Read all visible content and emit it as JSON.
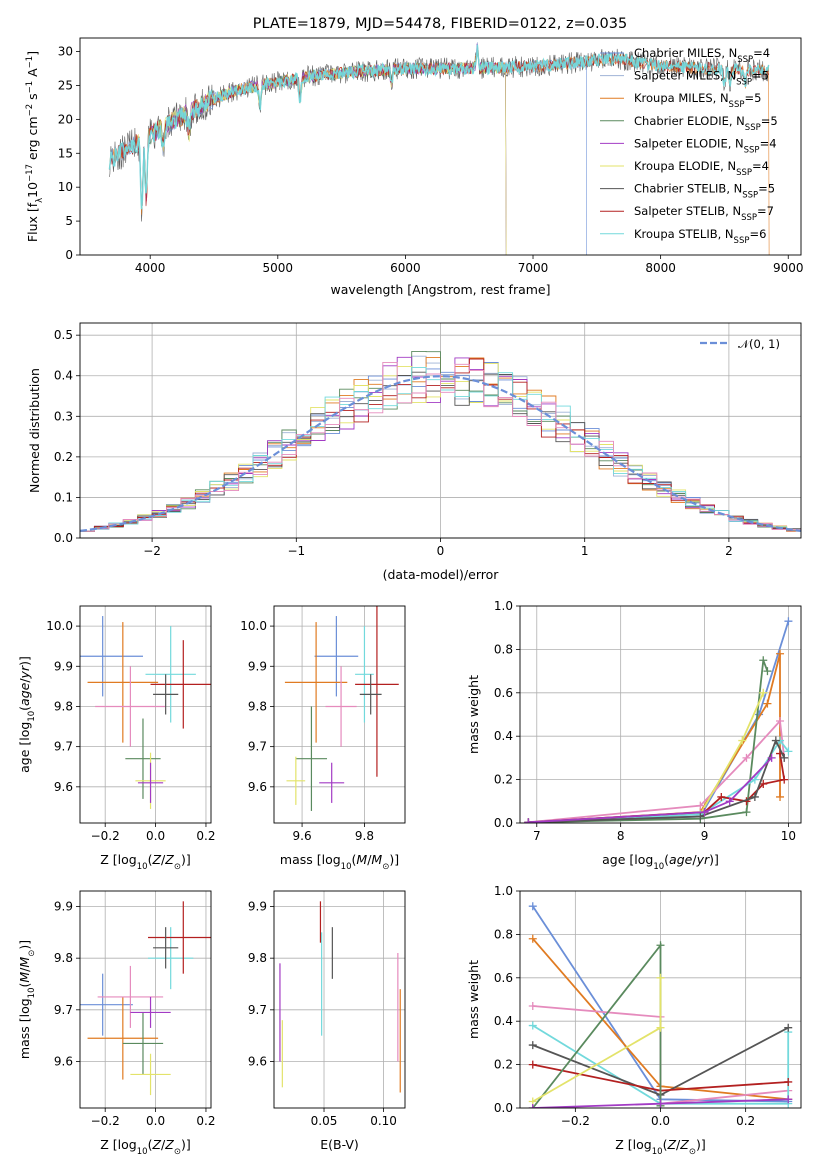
{
  "title": "PLATE=1879, MJD=54478, FIBERID=0122, z=0.035",
  "colors": {
    "Chabrier MILES": "#6b8fd8",
    "Salpeter MILES": "#9fb3d6",
    "Kroupa MILES": "#e07b22",
    "Chabrier ELODIE": "#5a8a5e",
    "Salpeter ELODIE": "#a23bc4",
    "Kroupa ELODIE": "#e3e36a",
    "Chabrier STELIB": "#555555",
    "Salpeter STELIB": "#b32020",
    "Kroupa STELIB": "#72d9dc",
    "pink": "#e58bbd",
    "lime": "#c9e85b",
    "normal": "#6b8fd8"
  },
  "chart_data": [
    {
      "id": "spectrum",
      "type": "line",
      "xlabel": "wavelength [Angstrom, rest frame]",
      "ylabel": "Flux [f",
      "ylabel_parts": [
        "Flux [f",
        "λ",
        "10",
        "−17",
        " erg cm",
        "−2",
        " s",
        "−1",
        " A",
        "−1",
        "]"
      ],
      "xlim": [
        3450,
        9100
      ],
      "ylim": [
        0,
        32
      ],
      "xticks": [
        4000,
        5000,
        6000,
        7000,
        8000,
        9000
      ],
      "yticks": [
        0,
        5,
        10,
        15,
        20,
        25,
        30
      ],
      "legend_position": "right",
      "legend": [
        {
          "name": "Chabrier MILES",
          "n": "4"
        },
        {
          "name": "Salpeter MILES",
          "n": "5"
        },
        {
          "name": "Kroupa MILES",
          "n": "5"
        },
        {
          "name": "Chabrier ELODIE",
          "n": "5"
        },
        {
          "name": "Salpeter ELODIE",
          "n": "4"
        },
        {
          "name": "Kroupa ELODIE",
          "n": "4"
        },
        {
          "name": "Chabrier STELIB",
          "n": "5"
        },
        {
          "name": "Salpeter STELIB",
          "n": "7"
        },
        {
          "name": "Kroupa STELIB",
          "n": "6"
        }
      ],
      "nssp_label": "N",
      "nssp_sub": "SSP",
      "continuum": [
        [
          3680,
          14
        ],
        [
          3850,
          16
        ],
        [
          3950,
          17
        ],
        [
          4100,
          19
        ],
        [
          4300,
          21
        ],
        [
          4500,
          23
        ],
        [
          4700,
          24.5
        ],
        [
          5000,
          25.5
        ],
        [
          5300,
          26.5
        ],
        [
          5600,
          27
        ],
        [
          6000,
          27.5
        ],
        [
          6500,
          27.5
        ],
        [
          7000,
          27.8
        ],
        [
          7400,
          28.5
        ],
        [
          7600,
          29
        ],
        [
          7800,
          28.5
        ],
        [
          8000,
          27.8
        ],
        [
          8400,
          27.5
        ],
        [
          8800,
          27.2
        ]
      ],
      "dips": [
        [
          3934,
          10
        ],
        [
          3969,
          9
        ],
        [
          4102,
          3
        ],
        [
          4304,
          3
        ],
        [
          4861,
          3
        ],
        [
          5175,
          3
        ],
        [
          5890,
          2
        ],
        [
          6563,
          -3
        ],
        [
          8500,
          2
        ],
        [
          8542,
          2
        ],
        [
          8662,
          2
        ]
      ]
    },
    {
      "id": "residuals",
      "type": "histogram",
      "xlabel": "(data-model)/error",
      "ylabel": "Normed distribution",
      "xlim": [
        -2.5,
        2.5
      ],
      "ylim": [
        0,
        0.53
      ],
      "xticks": [
        -2,
        -1,
        0,
        1,
        2
      ],
      "yticks": [
        0.0,
        0.1,
        0.2,
        0.3,
        0.4,
        0.5
      ],
      "grid": true,
      "legend_position": "top-right",
      "legend_label": "𝒩(0, 1)",
      "bin_width": 0.1
    },
    {
      "id": "age-vs-Z",
      "type": "scatter",
      "xlabel": "Z [log",
      "ylabel": "age  [log",
      "xlim": [
        -0.3,
        0.22
      ],
      "ylim": [
        9.51,
        10.05
      ],
      "xticks": [
        -0.2,
        0.0,
        0.2
      ],
      "yticks": [
        9.6,
        9.7,
        9.8,
        9.9,
        10.0
      ],
      "grid": true,
      "points": [
        {
          "c": "Chabrier MILES",
          "x": -0.21,
          "y": 9.925,
          "xerr": 0.16,
          "yerr": 0.1
        },
        {
          "c": "Kroupa MILES",
          "x": -0.13,
          "y": 9.86,
          "xerr": 0.14,
          "yerr": 0.15
        },
        {
          "c": "pink",
          "x": -0.1,
          "y": 9.8,
          "xerr": 0.14,
          "yerr": 0.1
        },
        {
          "c": "Kroupa STELIB",
          "x": 0.06,
          "y": 9.88,
          "xerr": 0.1,
          "yerr": 0.12
        },
        {
          "c": "Salpeter STELIB",
          "x": 0.11,
          "y": 9.855,
          "xerr": 0.13,
          "yerr": 0.11
        },
        {
          "c": "Chabrier STELIB",
          "x": 0.04,
          "y": 9.83,
          "xerr": 0.05,
          "yerr": 0.05
        },
        {
          "c": "Chabrier ELODIE",
          "x": -0.05,
          "y": 9.67,
          "xerr": 0.07,
          "yerr": 0.1
        },
        {
          "c": "Kroupa ELODIE",
          "x": -0.02,
          "y": 9.615,
          "xerr": 0.06,
          "yerr": 0.07
        },
        {
          "c": "Salpeter ELODIE",
          "x": -0.02,
          "y": 9.61,
          "xerr": 0.05,
          "yerr": 0.05
        }
      ]
    },
    {
      "id": "age-vs-mass",
      "type": "scatter",
      "xlabel": "mass [log",
      "xlim": [
        9.51,
        9.93
      ],
      "ylim": [
        9.51,
        10.05
      ],
      "xticks": [
        9.6,
        9.8
      ],
      "yticks": [
        9.6,
        9.7,
        9.8,
        9.9,
        10.0
      ],
      "grid": true,
      "points": [
        {
          "c": "Chabrier MILES",
          "x": 9.71,
          "y": 9.925,
          "xerr": 0.07,
          "yerr": 0.1
        },
        {
          "c": "Kroupa MILES",
          "x": 9.645,
          "y": 9.86,
          "xerr": 0.1,
          "yerr": 0.15
        },
        {
          "c": "pink",
          "x": 9.725,
          "y": 9.8,
          "xerr": 0.05,
          "yerr": 0.1
        },
        {
          "c": "Kroupa STELIB",
          "x": 9.8,
          "y": 9.88,
          "xerr": 0.03,
          "yerr": 0.12
        },
        {
          "c": "Salpeter STELIB",
          "x": 9.84,
          "y": 9.855,
          "xerr": 0.07,
          "yerr": 0.23
        },
        {
          "c": "Chabrier STELIB",
          "x": 9.82,
          "y": 9.83,
          "xerr": 0.035,
          "yerr": 0.05
        },
        {
          "c": "Chabrier ELODIE",
          "x": 9.63,
          "y": 9.67,
          "xerr": 0.05,
          "yerr": 0.13
        },
        {
          "c": "Kroupa ELODIE",
          "x": 9.58,
          "y": 9.615,
          "xerr": 0.03,
          "yerr": 0.06
        },
        {
          "c": "Salpeter ELODIE",
          "x": 9.695,
          "y": 9.61,
          "xerr": 0.04,
          "yerr": 0.05
        }
      ]
    },
    {
      "id": "weight-vs-age",
      "type": "line",
      "xlabel": "age  [log",
      "ylabel": "mass weight",
      "xlim": [
        6.8,
        10.15
      ],
      "ylim": [
        0,
        1.0
      ],
      "xticks": [
        7,
        8,
        9,
        10
      ],
      "yticks": [
        0.0,
        0.2,
        0.4,
        0.6,
        0.8,
        1.0
      ],
      "grid": true,
      "series": [
        {
          "c": "Chabrier MILES",
          "pts": [
            [
              6.9,
              0.003
            ],
            [
              8.95,
              0.03
            ],
            [
              9.65,
              0.5
            ],
            [
              10.0,
              0.93
            ]
          ]
        },
        {
          "c": "Kroupa MILES",
          "pts": [
            [
              6.9,
              0.003
            ],
            [
              8.95,
              0.05
            ],
            [
              9.75,
              0.55
            ],
            [
              9.9,
              0.78
            ],
            [
              9.9,
              0.12
            ]
          ]
        },
        {
          "c": "pink",
          "pts": [
            [
              6.9,
              0.003
            ],
            [
              8.95,
              0.08
            ],
            [
              9.5,
              0.3
            ],
            [
              9.9,
              0.47
            ],
            [
              9.95,
              0.3
            ]
          ]
        },
        {
          "c": "Chabrier ELODIE",
          "pts": [
            [
              6.9,
              0.003
            ],
            [
              8.95,
              0.02
            ],
            [
              9.5,
              0.05
            ],
            [
              9.7,
              0.75
            ],
            [
              9.75,
              0.7
            ]
          ]
        },
        {
          "c": "Kroupa ELODIE",
          "pts": [
            [
              6.9,
              0.003
            ],
            [
              8.95,
              0.04
            ],
            [
              9.45,
              0.38
            ],
            [
              9.7,
              0.6
            ]
          ]
        },
        {
          "c": "Kroupa STELIB",
          "pts": [
            [
              6.9,
              0.003
            ],
            [
              8.95,
              0.04
            ],
            [
              9.6,
              0.2
            ],
            [
              9.9,
              0.38
            ],
            [
              10.0,
              0.33
            ]
          ]
        },
        {
          "c": "Salpeter STELIB",
          "pts": [
            [
              6.9,
              0.003
            ],
            [
              9.0,
              0.05
            ],
            [
              9.2,
              0.12
            ],
            [
              9.5,
              0.1
            ],
            [
              9.7,
              0.18
            ],
            [
              9.95,
              0.2
            ],
            [
              9.9,
              0.32
            ]
          ]
        },
        {
          "c": "Chabrier STELIB",
          "pts": [
            [
              6.9,
              0.003
            ],
            [
              8.95,
              0.03
            ],
            [
              9.6,
              0.12
            ],
            [
              9.85,
              0.38
            ],
            [
              9.95,
              0.3
            ]
          ]
        },
        {
          "c": "Salpeter ELODIE",
          "pts": [
            [
              6.9,
              0.003
            ],
            [
              9.0,
              0.05
            ],
            [
              9.3,
              0.1
            ],
            [
              9.8,
              0.3
            ]
          ]
        }
      ]
    },
    {
      "id": "mass-vs-Z",
      "type": "scatter",
      "xlabel": "Z [log",
      "ylabel": "mass [log",
      "xlim": [
        -0.3,
        0.22
      ],
      "ylim": [
        9.51,
        9.93
      ],
      "xticks": [
        -0.2,
        0.0,
        0.2
      ],
      "yticks": [
        9.6,
        9.7,
        9.8,
        9.9
      ],
      "grid": true,
      "points": [
        {
          "c": "Chabrier MILES",
          "x": -0.21,
          "y": 9.71,
          "xerr": 0.12,
          "yerr": 0.06
        },
        {
          "c": "Kroupa MILES",
          "x": -0.13,
          "y": 9.645,
          "xerr": 0.14,
          "yerr": 0.08
        },
        {
          "c": "pink",
          "x": -0.1,
          "y": 9.725,
          "xerr": 0.13,
          "yerr": 0.06
        },
        {
          "c": "Kroupa STELIB",
          "x": 0.06,
          "y": 9.8,
          "xerr": 0.09,
          "yerr": 0.06
        },
        {
          "c": "Salpeter STELIB",
          "x": 0.11,
          "y": 9.84,
          "xerr": 0.14,
          "yerr": 0.07
        },
        {
          "c": "Chabrier STELIB",
          "x": 0.04,
          "y": 9.82,
          "xerr": 0.05,
          "yerr": 0.04
        },
        {
          "c": "Chabrier ELODIE",
          "x": -0.05,
          "y": 9.635,
          "xerr": 0.08,
          "yerr": 0.06
        },
        {
          "c": "Kroupa ELODIE",
          "x": -0.02,
          "y": 9.575,
          "xerr": 0.08,
          "yerr": 0.04
        },
        {
          "c": "Salpeter ELODIE",
          "x": -0.02,
          "y": 9.695,
          "xerr": 0.08,
          "yerr": 0.03
        }
      ]
    },
    {
      "id": "mass-vs-EBV",
      "type": "scatter",
      "xlabel": "E(B-V)",
      "xlim": [
        0.008,
        0.118
      ],
      "ylim": [
        9.51,
        9.93
      ],
      "xticks": [
        0.05,
        0.1
      ],
      "yticks": [
        9.6,
        9.7,
        9.8,
        9.9
      ],
      "grid": true,
      "segments": [
        {
          "c": "Salpeter ELODIE",
          "x": 0.013,
          "y0": 9.6,
          "y1": 9.79
        },
        {
          "c": "Kroupa ELODIE",
          "x": 0.015,
          "y0": 9.55,
          "y1": 9.68
        },
        {
          "c": "Salpeter STELIB",
          "x": 0.047,
          "y0": 9.83,
          "y1": 9.91
        },
        {
          "c": "Kroupa STELIB",
          "x": 0.048,
          "y0": 9.65,
          "y1": 9.85
        },
        {
          "c": "Chabrier STELIB",
          "x": 0.057,
          "y0": 9.76,
          "y1": 9.86
        },
        {
          "c": "pink",
          "x": 0.112,
          "y0": 9.6,
          "y1": 9.81
        },
        {
          "c": "Kroupa MILES",
          "x": 0.114,
          "y0": 9.54,
          "y1": 9.74
        }
      ]
    },
    {
      "id": "weight-vs-Z",
      "type": "line",
      "xlabel": "Z [log",
      "ylabel": "mass weight",
      "xlim": [
        -0.33,
        0.33
      ],
      "ylim": [
        0,
        1.0
      ],
      "xticks": [
        -0.2,
        0.0,
        0.2
      ],
      "yticks": [
        0.0,
        0.2,
        0.4,
        0.6,
        0.8,
        1.0
      ],
      "grid": true,
      "series": [
        {
          "c": "Chabrier MILES",
          "pts": [
            [
              -0.3,
              0.93
            ],
            [
              0.0,
              0.04
            ],
            [
              0.3,
              0.03
            ]
          ]
        },
        {
          "c": "Kroupa MILES",
          "pts": [
            [
              -0.3,
              0.78
            ],
            [
              0.0,
              0.1
            ],
            [
              0.3,
              0.04
            ]
          ]
        },
        {
          "c": "pink",
          "pts": [
            [
              -0.3,
              0.47
            ],
            [
              0.0,
              0.42
            ],
            [
              0.0,
              0.02
            ],
            [
              0.3,
              0.08
            ]
          ]
        },
        {
          "c": "Kroupa STELIB",
          "pts": [
            [
              -0.3,
              0.38
            ],
            [
              0.0,
              0.02
            ],
            [
              0.3,
              0.02
            ],
            [
              0.3,
              0.35
            ]
          ]
        },
        {
          "c": "Chabrier STELIB",
          "pts": [
            [
              -0.3,
              0.29
            ],
            [
              0.0,
              0.06
            ],
            [
              0.3,
              0.37
            ]
          ]
        },
        {
          "c": "Salpeter STELIB",
          "pts": [
            [
              -0.3,
              0.2
            ],
            [
              0.0,
              0.08
            ],
            [
              0.3,
              0.12
            ]
          ]
        },
        {
          "c": "Chabrier ELODIE",
          "pts": [
            [
              -0.3,
              0.0
            ],
            [
              0.0,
              0.75
            ],
            [
              0.0,
              0.01
            ]
          ]
        },
        {
          "c": "Kroupa ELODIE",
          "pts": [
            [
              -0.3,
              0.03
            ],
            [
              0.0,
              0.37
            ],
            [
              0.0,
              0.6
            ]
          ]
        },
        {
          "c": "Salpeter ELODIE",
          "pts": [
            [
              -0.3,
              0.0
            ],
            [
              0.0,
              0.02
            ],
            [
              0.3,
              0.04
            ]
          ]
        }
      ]
    }
  ]
}
